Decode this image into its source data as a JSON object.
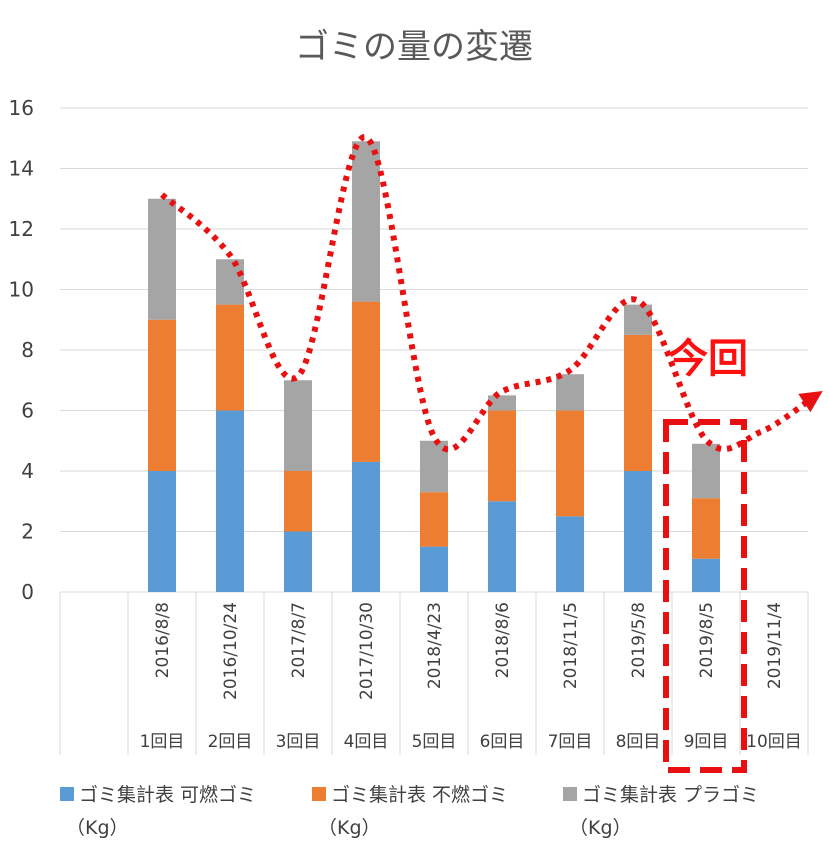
{
  "chart_data": {
    "type": "bar",
    "stacked": true,
    "title": "ゴミの量の変遷",
    "xlabel": "",
    "ylabel": "",
    "ylim": [
      0,
      16
    ],
    "yticks": [
      0,
      2,
      4,
      6,
      8,
      10,
      12,
      14,
      16
    ],
    "grid": true,
    "legend_position": "bottom",
    "categories": [
      "2016/8/8",
      "2016/10/24",
      "2017/8/7",
      "2017/10/30",
      "2018/4/23",
      "2018/8/6",
      "2018/11/5",
      "2019/5/8",
      "2019/8/5",
      "2019/11/4"
    ],
    "rounds": [
      "1回目",
      "2回目",
      "3回目",
      "4回目",
      "5回目",
      "6回目",
      "7回目",
      "8回目",
      "9回目",
      "10回目"
    ],
    "series": [
      {
        "name": "ゴミ集計表 可燃ゴミ",
        "unit": "（Kg）",
        "color": "#5b9bd5",
        "values": [
          4,
          6,
          2,
          4.3,
          1.5,
          3,
          2.5,
          4,
          1.1,
          null
        ]
      },
      {
        "name": "ゴミ集計表 不燃ゴミ",
        "unit": "（Kg）",
        "color": "#ed7d31",
        "values": [
          5,
          3.5,
          2,
          5.3,
          1.8,
          3,
          3.5,
          4.5,
          2,
          null
        ]
      },
      {
        "name": "ゴミ集計表 プラゴミ",
        "unit": "（Kg）",
        "color": "#a5a5a5",
        "values": [
          4,
          1.5,
          3,
          5.3,
          1.7,
          0.5,
          1.2,
          1,
          1.8,
          null
        ]
      }
    ],
    "annotation": {
      "text": "今回",
      "color": "#ff1010",
      "highlight_category": "2019/8/5"
    }
  }
}
